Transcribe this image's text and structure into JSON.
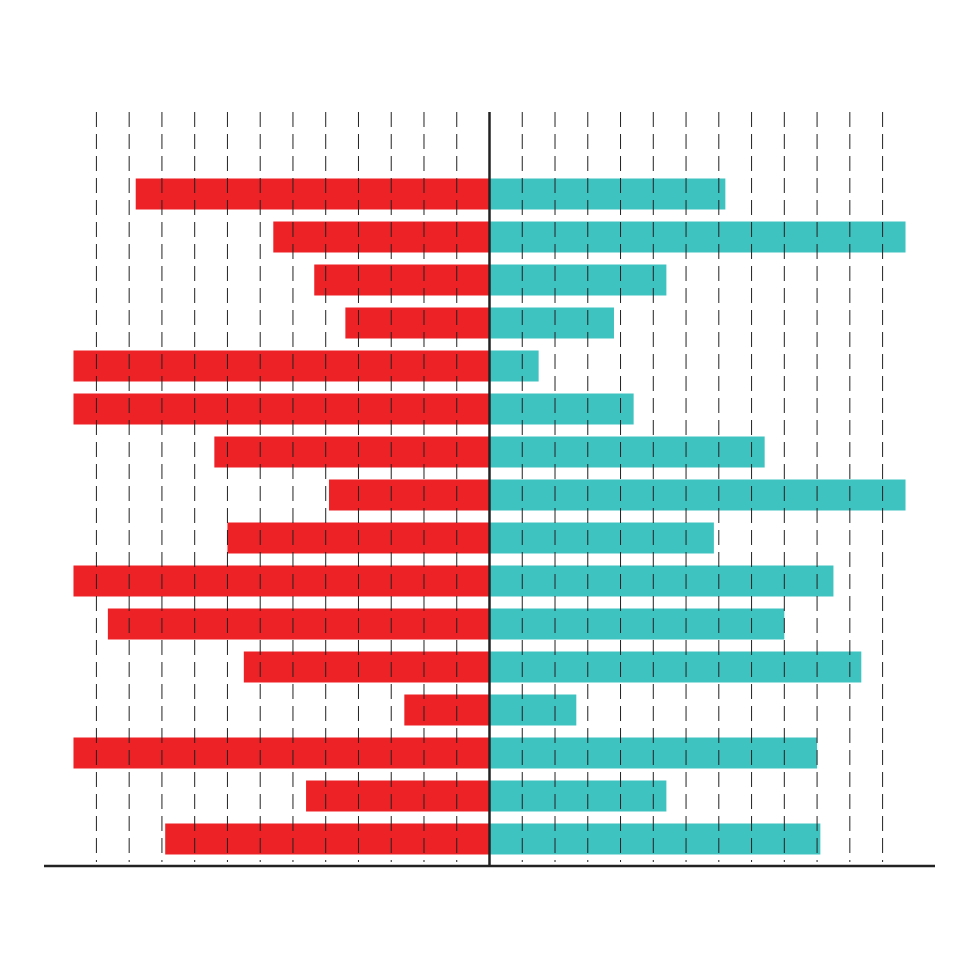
{
  "chart_data": {
    "type": "diverging-bar",
    "categories": [
      null,
      null,
      null,
      null,
      null,
      null,
      null,
      null,
      null,
      null,
      null,
      null,
      null,
      null,
      null,
      null
    ],
    "series": [
      {
        "color": "#ec2227",
        "values": [
          -10.8,
          -6.6,
          -5.35,
          -4.4,
          -12.7,
          -12.7,
          -8.4,
          -4.9,
          -8.0,
          -12.7,
          -11.65,
          -7.5,
          -2.6,
          -12.7,
          -5.6,
          -9.9
        ]
      },
      {
        "color": "#3ec3c1",
        "values": [
          7.2,
          12.7,
          5.4,
          3.8,
          1.5,
          4.4,
          8.4,
          12.7,
          6.85,
          10.5,
          9.0,
          11.35,
          2.65,
          10.0,
          5.4,
          10.1
        ]
      }
    ],
    "xlim": [
      -13.6,
      13.6
    ],
    "xticks": [
      -12,
      -11,
      -10,
      -9,
      -8,
      -7,
      -6,
      -5,
      -4,
      -3,
      -2,
      -1,
      1,
      2,
      3,
      4,
      5,
      6,
      7,
      8,
      9,
      10,
      11,
      12
    ],
    "grid": true
  }
}
